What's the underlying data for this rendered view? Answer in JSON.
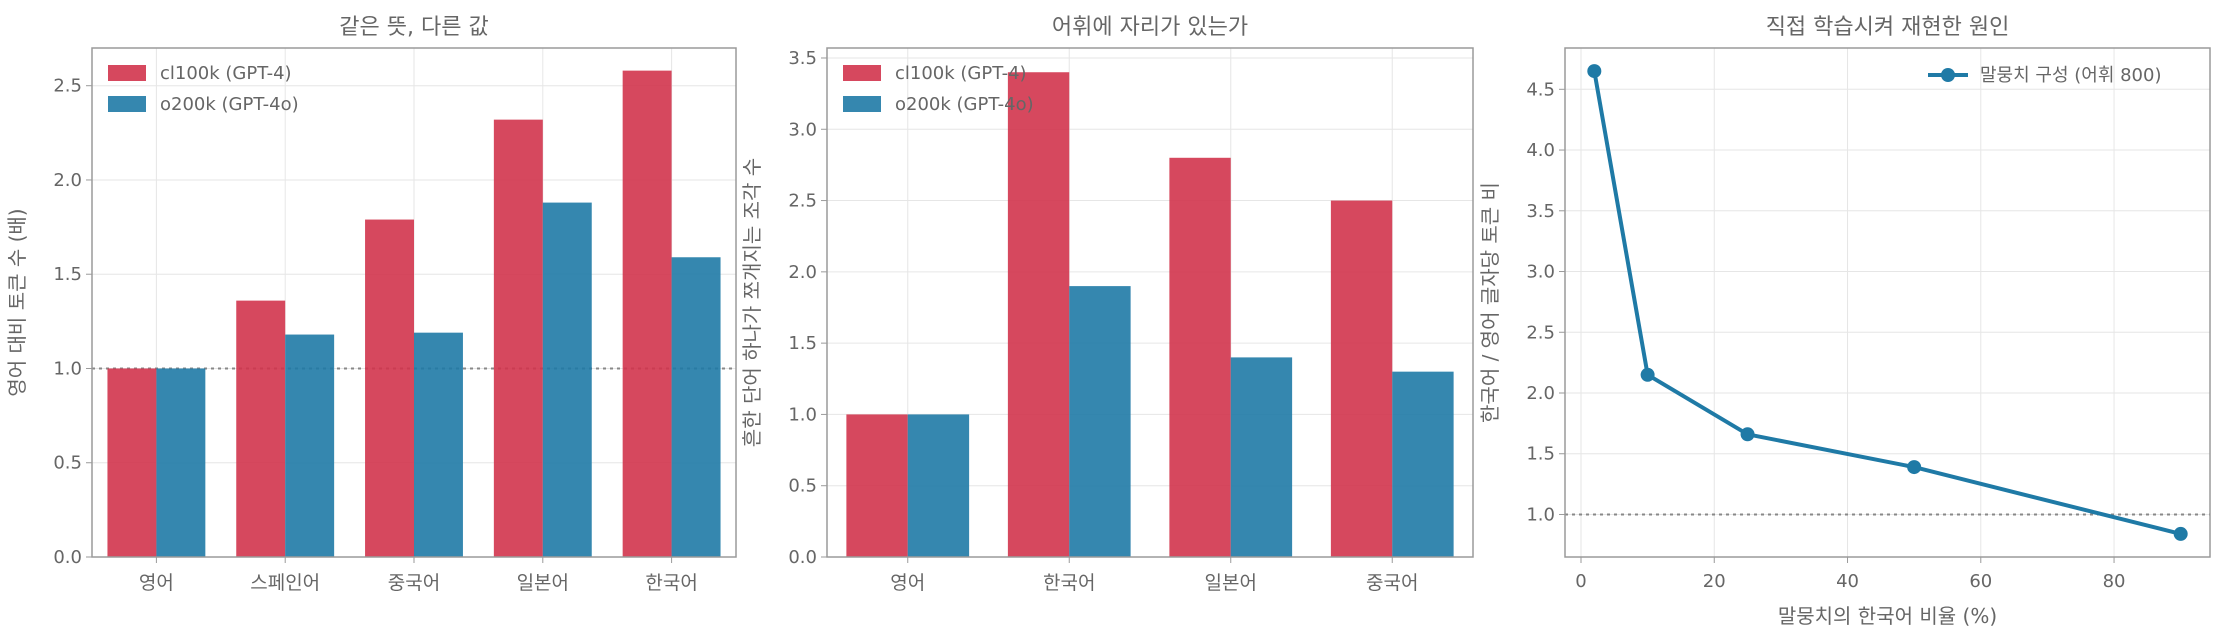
{
  "chart_data": [
    {
      "type": "bar",
      "title": "같은 뜻, 다른 값",
      "xlabel": "",
      "ylabel": "영어 대비 토큰 수 (배)",
      "categories": [
        "영어",
        "스페인어",
        "중국어",
        "일본어",
        "한국어"
      ],
      "series": [
        {
          "name": "cl100k (GPT-4)",
          "values": [
            1.0,
            1.36,
            1.79,
            2.32,
            2.58
          ]
        },
        {
          "name": "o200k (GPT-4o)",
          "values": [
            1.0,
            1.18,
            1.19,
            1.88,
            1.59
          ]
        }
      ],
      "ylim": [
        0,
        2.7
      ],
      "yticks": [
        0.0,
        0.5,
        1.0,
        1.5,
        2.0,
        2.5
      ],
      "ytick_labels": [
        "0.0",
        "0.5",
        "1.0",
        "1.5",
        "2.0",
        "2.5"
      ],
      "reference_line": 1.0,
      "grid": true,
      "legend": "top-left"
    },
    {
      "type": "bar",
      "title": "어휘에 자리가 있는가",
      "xlabel": "",
      "ylabel": "흔한 단어 하나가 쪼개지는 조각 수",
      "categories": [
        "영어",
        "한국어",
        "일본어",
        "중국어"
      ],
      "series": [
        {
          "name": "cl100k (GPT-4)",
          "values": [
            1.0,
            3.4,
            2.8,
            2.5
          ]
        },
        {
          "name": "o200k (GPT-4o)",
          "values": [
            1.0,
            1.9,
            1.4,
            1.3
          ]
        }
      ],
      "ylim": [
        0,
        3.57
      ],
      "yticks": [
        0.0,
        0.5,
        1.0,
        1.5,
        2.0,
        2.5,
        3.0,
        3.5
      ],
      "ytick_labels": [
        "0.0",
        "0.5",
        "1.0",
        "1.5",
        "2.0",
        "2.5",
        "3.0",
        "3.5"
      ],
      "grid": true,
      "legend": "top-left"
    },
    {
      "type": "line",
      "title": "직접 학습시켜 재현한 원인",
      "xlabel": "말뭉치의 한국어 비율 (%)",
      "ylabel": "한국어 / 영어 글자당 토큰 비",
      "series": [
        {
          "name": "말뭉치 구성 (어휘 800)",
          "x": [
            2,
            10,
            25,
            50,
            90
          ],
          "y": [
            4.65,
            2.15,
            1.66,
            1.39,
            0.84
          ]
        }
      ],
      "xlim": [
        -2.4,
        94.4
      ],
      "ylim": [
        0.65,
        4.84
      ],
      "xticks": [
        0,
        20,
        40,
        60,
        80
      ],
      "xtick_labels": [
        "0",
        "20",
        "40",
        "60",
        "80"
      ],
      "yticks": [
        1.0,
        1.5,
        2.0,
        2.5,
        3.0,
        3.5,
        4.0,
        4.5
      ],
      "ytick_labels": [
        "1.0",
        "1.5",
        "2.0",
        "2.5",
        "3.0",
        "3.5",
        "4.0",
        "4.5"
      ],
      "reference_line": 1.0,
      "grid": true,
      "legend": "top-right"
    }
  ],
  "colors": {
    "series_red": "#d1344c",
    "series_blue": "#1f7aa6",
    "text": "#666666",
    "grid": "#e6e6e6",
    "axes": "#9a9a9a",
    "refline": "#888888"
  }
}
